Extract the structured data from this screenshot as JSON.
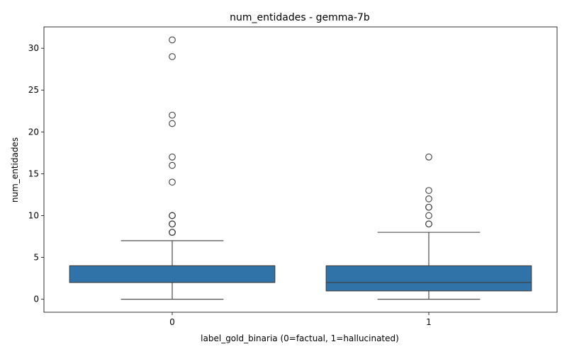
{
  "chart_data": {
    "type": "boxplot",
    "title": "num_entidades - gemma-7b",
    "xlabel": "label_gold_binaria (0=factual, 1=hallucinated)",
    "ylabel": "num_entidades",
    "categories": [
      "0",
      "1"
    ],
    "ylim": [
      -1.55,
      32.55
    ],
    "yticks": [
      0,
      5,
      10,
      15,
      20,
      25,
      30
    ],
    "box_color": "#2f73a8",
    "edge_color": "#3d3d3d",
    "boxes": [
      {
        "category": "0",
        "whisker_low": 0,
        "q1": 2,
        "median": 4,
        "q3": 4,
        "whisker_high": 7,
        "outliers": [
          8,
          8,
          8,
          9,
          9,
          9,
          10,
          10,
          10,
          14,
          16,
          17,
          21,
          22,
          29,
          31
        ]
      },
      {
        "category": "1",
        "whisker_low": 0,
        "q1": 1,
        "median": 2,
        "q3": 4,
        "whisker_high": 8,
        "outliers": [
          9,
          9,
          10,
          11,
          11,
          12,
          13,
          17
        ]
      }
    ]
  }
}
